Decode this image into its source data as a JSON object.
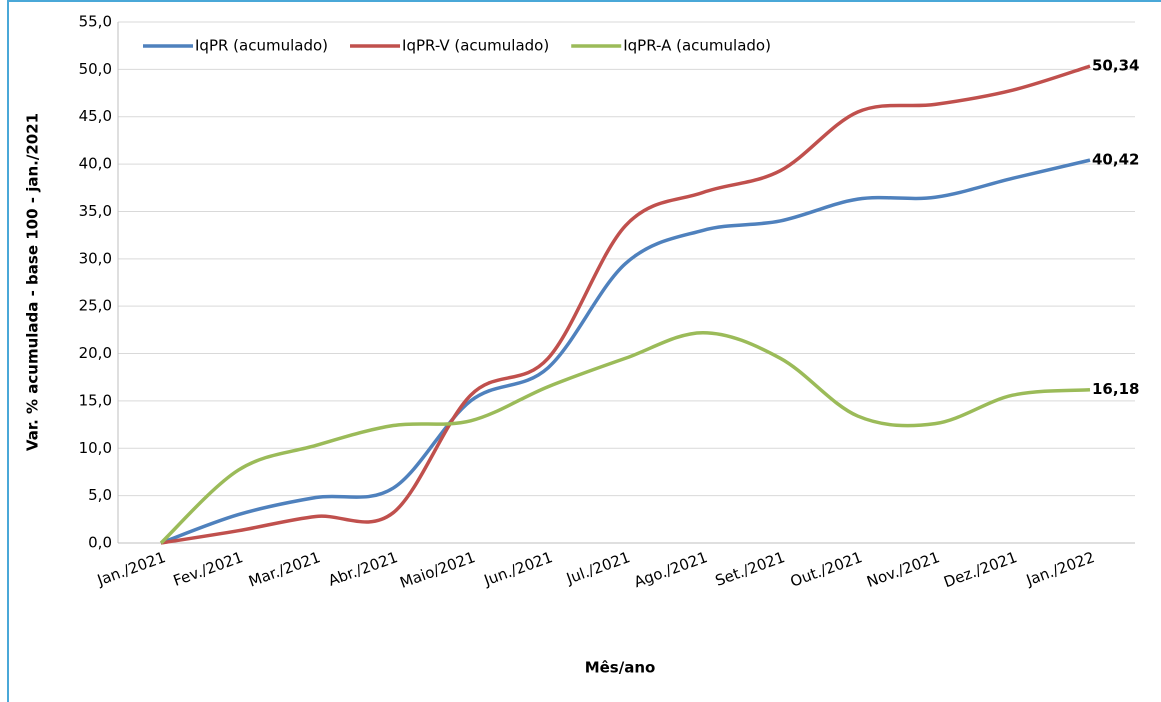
{
  "chart_data": {
    "type": "line",
    "x_label": "Mês/ano",
    "y_label": "Var. % acumulada - base 100 - jan./2021",
    "categories": [
      "Jan./2021",
      "Fev./2021",
      "Mar./2021",
      "Abr./2021",
      "Maio/2021",
      "Jun./2021",
      "Jul./2021",
      "Ago./2021",
      "Set./2021",
      "Out./2021",
      "Nov./2021",
      "Dez./2021",
      "Jan./2022"
    ],
    "series": [
      {
        "name": "IqPR (acumulado)",
        "color": "#4f81bd",
        "values": [
          0,
          3.0,
          4.8,
          5.8,
          15.0,
          18.5,
          29.5,
          33.0,
          34.0,
          36.3,
          36.5,
          38.5,
          40.42
        ],
        "value_labels": [
          null,
          null,
          null,
          null,
          null,
          null,
          null,
          null,
          null,
          null,
          null,
          null,
          "40,42"
        ],
        "label_color": "#0000ff"
      },
      {
        "name": "IqPR-V  (acumulado)",
        "color": "#c0504d",
        "values": [
          0,
          1.3,
          2.8,
          3.2,
          15.6,
          19.5,
          33.5,
          37.0,
          39.3,
          45.5,
          46.3,
          47.8,
          50.34
        ],
        "value_labels": [
          null,
          null,
          null,
          null,
          null,
          null,
          null,
          null,
          null,
          null,
          null,
          null,
          "50,34"
        ],
        "label_color": "#ff0000"
      },
      {
        "name": "IqPR-A  (acumulado)",
        "color": "#9bbb59",
        "values": [
          0,
          7.7,
          10.3,
          12.4,
          12.9,
          16.5,
          19.5,
          22.2,
          19.5,
          13.4,
          12.6,
          15.6,
          16.18
        ],
        "value_labels": [
          null,
          null,
          null,
          null,
          null,
          null,
          null,
          null,
          null,
          null,
          null,
          null,
          "16,18"
        ],
        "label_color": "#77933c"
      }
    ],
    "ylim": [
      0,
      55
    ],
    "yticks": [
      {
        "value": 0,
        "label": "0,0"
      },
      {
        "value": 5,
        "label": "5,0"
      },
      {
        "value": 10,
        "label": "10,0"
      },
      {
        "value": 15,
        "label": "15,0"
      },
      {
        "value": 20,
        "label": "20,0"
      },
      {
        "value": 25,
        "label": "25,0"
      },
      {
        "value": 30,
        "label": "30,0"
      },
      {
        "value": 35,
        "label": "35,0"
      },
      {
        "value": 40,
        "label": "40,0"
      },
      {
        "value": 45,
        "label": "45,0"
      },
      {
        "value": 50,
        "label": "50,0"
      },
      {
        "value": 55,
        "label": "55,0"
      }
    ],
    "grid": true,
    "legend": "top"
  }
}
